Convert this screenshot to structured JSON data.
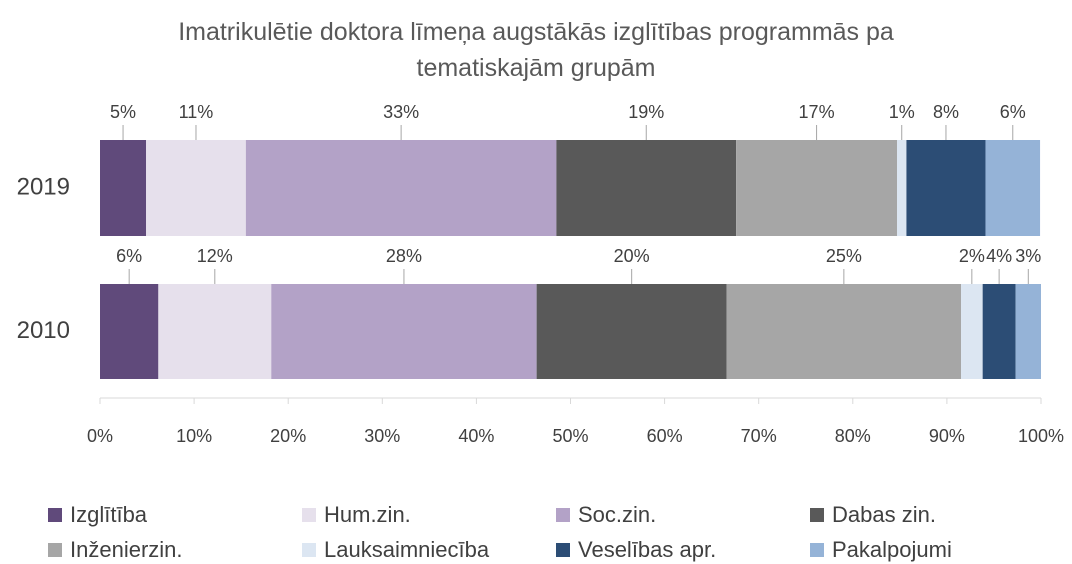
{
  "chart_data": {
    "type": "stacked_bar_horizontal",
    "title": "Imatrikulētie doktora līmeņa augstākās izglītības programmās pa tematiskajām grupām",
    "categories": [
      "2019",
      "2010"
    ],
    "series": [
      {
        "name": "Izglītība",
        "color": "#604a7b",
        "values": [
          4.9,
          6.2
        ],
        "value_labels": [
          "5%",
          "6%"
        ]
      },
      {
        "name": "Hum.zin.",
        "color": "#e6e0ec",
        "values": [
          10.6,
          12.0
        ],
        "value_labels": [
          "11%",
          "12%"
        ]
      },
      {
        "name": "Soc.zin.",
        "color": "#b3a2c7",
        "values": [
          33.0,
          28.2
        ],
        "value_labels": [
          "33%",
          "28%"
        ]
      },
      {
        "name": "Dabas zin.",
        "color": "#595959",
        "values": [
          19.1,
          20.2
        ],
        "value_labels": [
          "19%",
          "20%"
        ]
      },
      {
        "name": "Inženierzin.",
        "color": "#a6a6a6",
        "values": [
          17.1,
          24.9
        ],
        "value_labels": [
          "17%",
          "25%"
        ]
      },
      {
        "name": "Lauksaimniecība",
        "color": "#dce6f2",
        "values": [
          1.0,
          2.3
        ],
        "value_labels": [
          "1%",
          "2%"
        ]
      },
      {
        "name": "Veselības apr.",
        "color": "#2c4d75",
        "values": [
          8.4,
          3.5
        ],
        "value_labels": [
          "8%",
          "4%"
        ]
      },
      {
        "name": "Pakalpojumi",
        "color": "#95b3d7",
        "values": [
          5.8,
          2.7
        ],
        "value_labels": [
          "6%",
          "3%"
        ]
      }
    ],
    "xlim": [
      0,
      100
    ],
    "xticks": [
      {
        "value": 0,
        "label": "0%"
      },
      {
        "value": 10,
        "label": "10%"
      },
      {
        "value": 20,
        "label": "20%"
      },
      {
        "value": 30,
        "label": "30%"
      },
      {
        "value": 40,
        "label": "40%"
      },
      {
        "value": 50,
        "label": "50%"
      },
      {
        "value": 60,
        "label": "60%"
      },
      {
        "value": 70,
        "label": "70%"
      },
      {
        "value": 80,
        "label": "80%"
      },
      {
        "value": 90,
        "label": "90%"
      },
      {
        "value": 100,
        "label": "100%"
      }
    ],
    "legend": "bottom"
  }
}
